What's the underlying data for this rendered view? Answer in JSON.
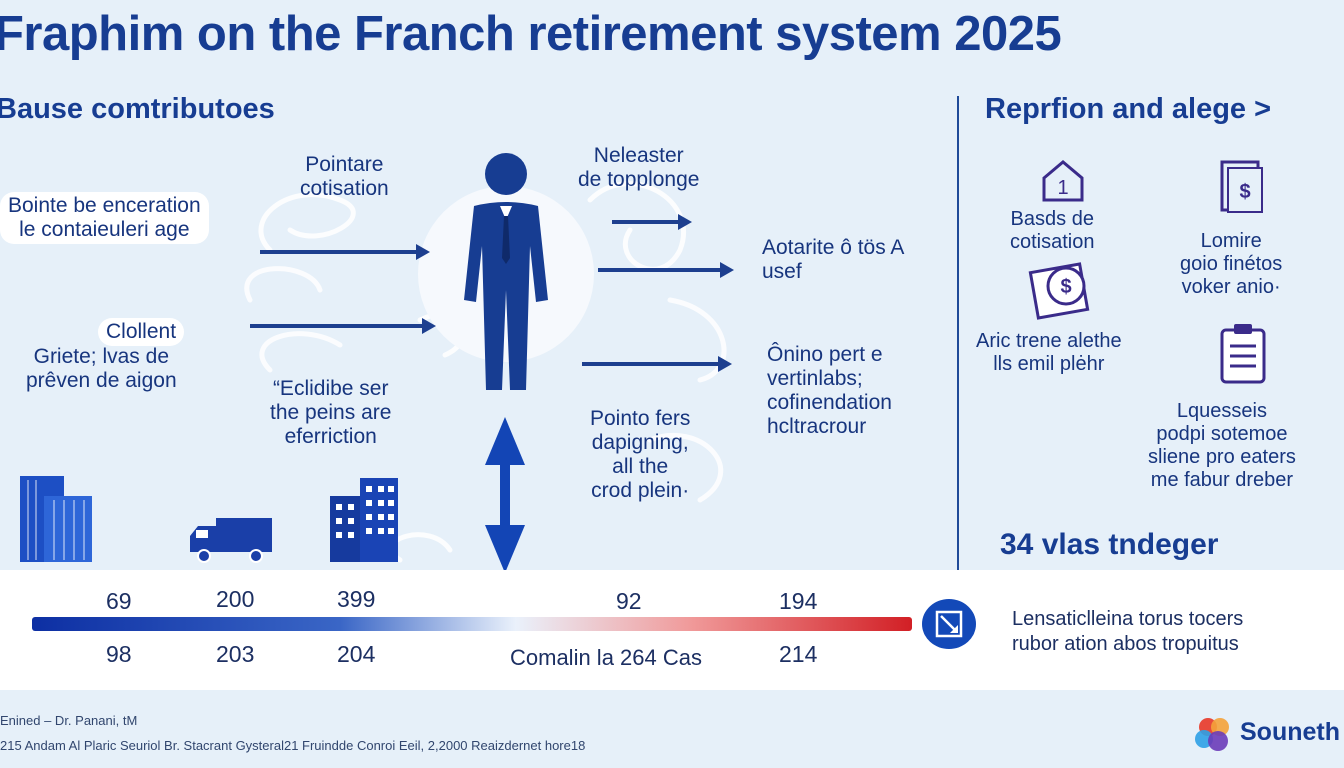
{
  "header": {
    "title": "Fraphim on the Franch retirement system 2025"
  },
  "left_panel": {
    "heading": "Bause comtributoes",
    "labels": {
      "top_center": [
        "Pointare",
        "cotisation"
      ],
      "left_1": [
        "Bointe be enceration",
        "le contaieuleri age"
      ],
      "left_2": [
        "Clollent"
      ],
      "left_3": [
        "Griete; lvas de",
        "prêven de aigon"
      ],
      "bottom_center": [
        "“Eclidibe ser",
        "the peins are",
        "eferriction"
      ],
      "right_top": [
        "Neleaster",
        "de topplonge"
      ],
      "right_1": [
        "Aotarite ô tös A",
        "usef"
      ],
      "right_2": [
        "Ônino pert e",
        "vertinlabs;",
        "cofinendation",
        "hcltracrour"
      ],
      "right_3": [
        "Pointo fers",
        "dapigning,",
        "all the",
        "crod plein·"
      ]
    }
  },
  "right_panel": {
    "heading": "Reprfion and alege >",
    "items": [
      {
        "icon": "house-icon",
        "label": [
          "Basds de",
          "cotisation"
        ]
      },
      {
        "icon": "banknote-icon",
        "label": [
          "Lomire",
          "goio finétos",
          "voker anio·"
        ]
      },
      {
        "icon": "coin-icon",
        "label": [
          "Aric trene  alethe",
          "lls emil plėhr"
        ]
      },
      {
        "icon": "clipboard-icon",
        "label": [
          "Lquesseis",
          "podpi sotemoe",
          "sliene pro eaters",
          "me fabur dreber"
        ]
      }
    ],
    "stat": "34 vlas tndeger"
  },
  "scale_band": {
    "top_numbers": [
      "69",
      "200",
      "399",
      "92",
      "194"
    ],
    "bottom_numbers": [
      "98",
      "203",
      "204",
      "214"
    ],
    "caption": "Comalin la 264 Cas",
    "note": [
      "Lensaticlleina torus tocers",
      "rubor ation abos tropuitus"
    ],
    "colors": {
      "start": "#0d2fa3",
      "end": "#d21f25",
      "accent": "#1349b8"
    }
  },
  "footer": {
    "line1": "Enined – Dr. Panani, tM",
    "line2": "215 Andam Al Plaric Seuriol Br. Stacrant Gysteral21 Fruindde Conroi Eeil, 2,2000 Reaizdernet hore18",
    "brand": "Souneth"
  }
}
